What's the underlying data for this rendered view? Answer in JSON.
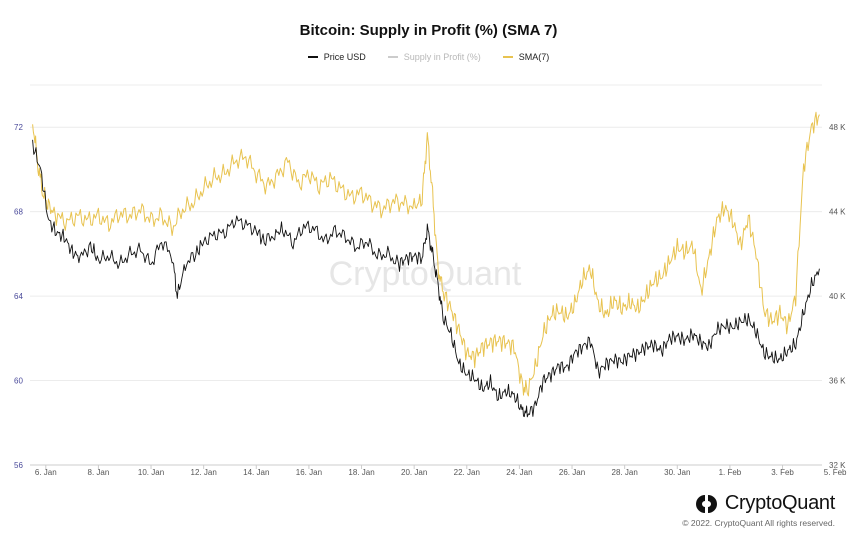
{
  "chart_data": {
    "type": "line",
    "title": "Bitcoin: Supply in Profit (%) (SMA 7)",
    "x_ticks": [
      "6. Jan",
      "8. Jan",
      "10. Jan",
      "12. Jan",
      "14. Jan",
      "16. Jan",
      "18. Jan",
      "20. Jan",
      "22. Jan",
      "24. Jan",
      "26. Jan",
      "28. Jan",
      "30. Jan",
      "1. Feb",
      "3. Feb",
      "5. Feb"
    ],
    "y_left": {
      "ticks": [
        "72",
        "68",
        "64",
        "60",
        "56"
      ],
      "ylim": [
        56,
        74
      ],
      "color": "#4a4a9a"
    },
    "y_right": {
      "ticks": [
        "48 K",
        "44 K",
        "40 K",
        "36 K",
        "32 K"
      ],
      "ylim": [
        32,
        50
      ]
    },
    "x_range_days": [
      5.4,
      35.5
    ],
    "legend_placement": "top-center",
    "watermark": "CryptoQuant",
    "series": [
      {
        "name": "Price USD",
        "axis": "right",
        "color": "#111111",
        "points": [
          [
            5.5,
            47.2
          ],
          [
            5.8,
            46.0
          ],
          [
            6.1,
            43.6
          ],
          [
            6.4,
            43.0
          ],
          [
            6.7,
            42.8
          ],
          [
            7.0,
            42.1
          ],
          [
            7.3,
            41.8
          ],
          [
            7.7,
            42.4
          ],
          [
            8.0,
            41.7
          ],
          [
            8.4,
            41.9
          ],
          [
            8.8,
            41.5
          ],
          [
            9.2,
            42.0
          ],
          [
            9.6,
            42.2
          ],
          [
            10.0,
            41.5
          ],
          [
            10.4,
            42.6
          ],
          [
            10.8,
            41.9
          ],
          [
            11.0,
            40.0
          ],
          [
            11.3,
            41.5
          ],
          [
            11.7,
            42.0
          ],
          [
            12.0,
            42.6
          ],
          [
            12.4,
            42.9
          ],
          [
            12.8,
            43.0
          ],
          [
            13.2,
            43.6
          ],
          [
            13.6,
            43.4
          ],
          [
            14.0,
            43.1
          ],
          [
            14.3,
            42.6
          ],
          [
            14.7,
            42.9
          ],
          [
            15.0,
            43.2
          ],
          [
            15.4,
            42.5
          ],
          [
            15.8,
            43.3
          ],
          [
            16.2,
            43.2
          ],
          [
            16.6,
            42.6
          ],
          [
            17.0,
            43.1
          ],
          [
            17.4,
            42.8
          ],
          [
            17.8,
            42.3
          ],
          [
            18.2,
            42.6
          ],
          [
            18.6,
            41.9
          ],
          [
            19.0,
            42.0
          ],
          [
            19.4,
            41.5
          ],
          [
            19.7,
            41.8
          ],
          [
            20.0,
            41.9
          ],
          [
            20.3,
            41.8
          ],
          [
            20.5,
            43.2
          ],
          [
            20.7,
            42.0
          ],
          [
            20.9,
            40.6
          ],
          [
            21.1,
            39.0
          ],
          [
            21.4,
            38.2
          ],
          [
            21.7,
            36.8
          ],
          [
            22.0,
            36.3
          ],
          [
            22.3,
            36.1
          ],
          [
            22.6,
            35.6
          ],
          [
            22.9,
            35.9
          ],
          [
            23.2,
            35.2
          ],
          [
            23.5,
            35.5
          ],
          [
            23.8,
            35.3
          ],
          [
            24.1,
            34.6
          ],
          [
            24.3,
            34.4
          ],
          [
            24.6,
            34.8
          ],
          [
            24.9,
            36.0
          ],
          [
            25.2,
            36.3
          ],
          [
            25.5,
            36.7
          ],
          [
            25.8,
            36.6
          ],
          [
            26.1,
            37.3
          ],
          [
            26.4,
            37.6
          ],
          [
            26.7,
            37.9
          ],
          [
            27.0,
            36.4
          ],
          [
            27.3,
            36.8
          ],
          [
            27.6,
            37.0
          ],
          [
            27.9,
            36.9
          ],
          [
            28.2,
            37.2
          ],
          [
            28.5,
            37.3
          ],
          [
            28.8,
            37.6
          ],
          [
            29.1,
            37.7
          ],
          [
            29.4,
            37.4
          ],
          [
            29.7,
            38.0
          ],
          [
            30.0,
            38.1
          ],
          [
            30.3,
            37.9
          ],
          [
            30.6,
            38.2
          ],
          [
            30.9,
            37.8
          ],
          [
            31.2,
            37.6
          ],
          [
            31.5,
            38.4
          ],
          [
            31.8,
            38.6
          ],
          [
            32.1,
            38.5
          ],
          [
            32.4,
            38.8
          ],
          [
            32.7,
            38.9
          ],
          [
            33.0,
            38.3
          ],
          [
            33.3,
            37.3
          ],
          [
            33.6,
            37.1
          ],
          [
            33.9,
            37.0
          ],
          [
            34.2,
            37.4
          ],
          [
            34.5,
            37.7
          ],
          [
            34.8,
            39.2
          ],
          [
            35.1,
            40.5
          ],
          [
            35.4,
            41.3
          ]
        ]
      },
      {
        "name": "Supply in Profit (%)",
        "axis": "left",
        "color": "#d8d8d8",
        "hidden": true,
        "points": []
      },
      {
        "name": "SMA(7)",
        "axis": "left",
        "color": "#e8c350",
        "points": [
          [
            5.5,
            72.3
          ],
          [
            5.7,
            70.2
          ],
          [
            5.9,
            68.8
          ],
          [
            6.1,
            68.3
          ],
          [
            6.4,
            67.8
          ],
          [
            6.8,
            67.5
          ],
          [
            7.2,
            67.8
          ],
          [
            7.6,
            67.6
          ],
          [
            8.0,
            67.8
          ],
          [
            8.4,
            67.4
          ],
          [
            8.8,
            67.9
          ],
          [
            9.2,
            67.8
          ],
          [
            9.6,
            68.1
          ],
          [
            10.0,
            67.6
          ],
          [
            10.4,
            67.8
          ],
          [
            10.8,
            67.2
          ],
          [
            11.2,
            68.1
          ],
          [
            11.6,
            68.4
          ],
          [
            12.0,
            69.1
          ],
          [
            12.4,
            69.6
          ],
          [
            12.8,
            69.8
          ],
          [
            13.2,
            70.4
          ],
          [
            13.6,
            70.6
          ],
          [
            14.0,
            69.8
          ],
          [
            14.4,
            69.2
          ],
          [
            14.8,
            69.7
          ],
          [
            15.2,
            70.4
          ],
          [
            15.6,
            69.3
          ],
          [
            16.0,
            69.8
          ],
          [
            16.4,
            69.2
          ],
          [
            16.8,
            69.6
          ],
          [
            17.2,
            69.1
          ],
          [
            17.6,
            68.7
          ],
          [
            18.0,
            68.9
          ],
          [
            18.4,
            68.4
          ],
          [
            18.8,
            68.1
          ],
          [
            19.2,
            68.5
          ],
          [
            19.6,
            68.4
          ],
          [
            20.0,
            68.2
          ],
          [
            20.3,
            68.6
          ],
          [
            20.5,
            71.6
          ],
          [
            20.7,
            68.8
          ],
          [
            20.9,
            65.4
          ],
          [
            21.1,
            64.2
          ],
          [
            21.4,
            63.4
          ],
          [
            21.7,
            62.4
          ],
          [
            22.0,
            61.3
          ],
          [
            22.3,
            61.1
          ],
          [
            22.6,
            61.6
          ],
          [
            22.9,
            61.8
          ],
          [
            23.2,
            61.9
          ],
          [
            23.5,
            61.8
          ],
          [
            23.8,
            61.6
          ],
          [
            24.1,
            59.8
          ],
          [
            24.3,
            59.5
          ],
          [
            24.6,
            60.6
          ],
          [
            24.9,
            62.2
          ],
          [
            25.2,
            63.1
          ],
          [
            25.5,
            63.3
          ],
          [
            25.8,
            63.0
          ],
          [
            26.1,
            63.6
          ],
          [
            26.4,
            64.8
          ],
          [
            26.7,
            65.3
          ],
          [
            27.0,
            63.6
          ],
          [
            27.3,
            63.1
          ],
          [
            27.6,
            63.8
          ],
          [
            27.9,
            63.4
          ],
          [
            28.2,
            63.7
          ],
          [
            28.5,
            63.4
          ],
          [
            28.8,
            64.0
          ],
          [
            29.1,
            64.7
          ],
          [
            29.4,
            64.9
          ],
          [
            29.7,
            65.6
          ],
          [
            30.0,
            66.3
          ],
          [
            30.3,
            66.1
          ],
          [
            30.6,
            66.4
          ],
          [
            30.9,
            64.2
          ],
          [
            31.2,
            65.8
          ],
          [
            31.5,
            67.6
          ],
          [
            31.8,
            68.2
          ],
          [
            32.1,
            67.6
          ],
          [
            32.4,
            66.4
          ],
          [
            32.7,
            67.7
          ],
          [
            33.0,
            66.0
          ],
          [
            33.3,
            63.3
          ],
          [
            33.6,
            62.8
          ],
          [
            33.9,
            63.2
          ],
          [
            34.2,
            62.6
          ],
          [
            34.5,
            64.0
          ],
          [
            34.8,
            70.1
          ],
          [
            35.1,
            72.0
          ],
          [
            35.4,
            72.6
          ]
        ]
      }
    ]
  },
  "legend": {
    "items": [
      {
        "label": "Price USD",
        "color": "#111111"
      },
      {
        "label": "Supply in Profit (%)",
        "color": "#cccccc"
      },
      {
        "label": "SMA(7)",
        "color": "#e8c350"
      }
    ]
  },
  "brand": {
    "name": "CryptoQuant",
    "copyright": "© 2022. CryptoQuant All rights reserved."
  }
}
